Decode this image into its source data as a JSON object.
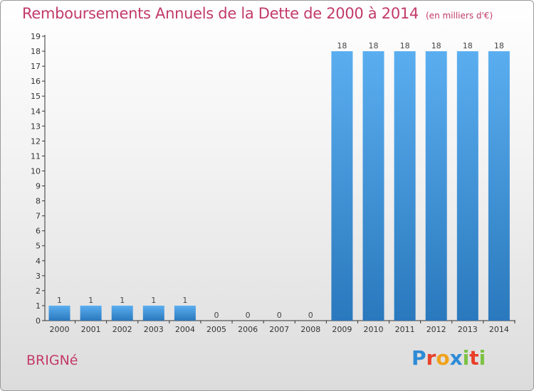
{
  "header": {
    "title": "Remboursements Annuels de la Dette de 2000 à 2014",
    "unit": "(en milliers d'€)"
  },
  "footer": {
    "commune": "BRIGNé",
    "brand_letters": [
      "P",
      "r",
      "o",
      "x",
      "i",
      "t",
      "i"
    ],
    "brand_colors": [
      "#2e8bd6",
      "#e8402a",
      "#f0a21b",
      "#2e8bd6",
      "#7cc243",
      "#e8402a",
      "#7cc243"
    ]
  },
  "colors": {
    "bar_top": "#5aaef0",
    "bar_bottom": "#2a78bd",
    "title": "#c23a6a"
  },
  "chart_data": {
    "type": "bar",
    "title": "Remboursements Annuels de la Dette de 2000 à 2014",
    "xlabel": "",
    "ylabel": "",
    "categories": [
      "2000",
      "2001",
      "2002",
      "2003",
      "2004",
      "2005",
      "2006",
      "2007",
      "2008",
      "2009",
      "2010",
      "2011",
      "2012",
      "2013",
      "2014"
    ],
    "values": [
      1,
      1,
      1,
      1,
      1,
      0,
      0,
      0,
      0,
      18,
      18,
      18,
      18,
      18,
      18
    ],
    "ylim": [
      0,
      19
    ],
    "yticks": [
      "0",
      "1",
      "2",
      "3",
      "4",
      "5",
      "6",
      "7",
      "8",
      "9",
      "10",
      "11",
      "12",
      "13",
      "14",
      "15",
      "16",
      "17",
      "18",
      "19"
    ],
    "grid": false,
    "legend": "none"
  }
}
